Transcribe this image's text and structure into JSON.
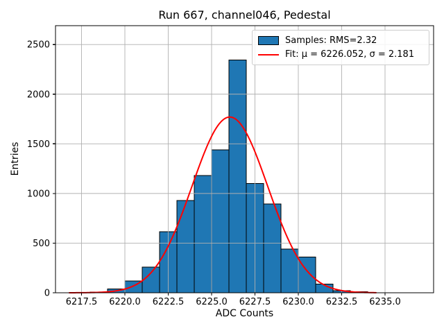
{
  "figure": {
    "background": "#ffffff"
  },
  "chart_data": {
    "type": "bar",
    "subtype": "histogram_with_gaussian_fit",
    "title": "Run 667, channel046, Pedestal",
    "xlabel": "ADC Counts",
    "ylabel": "Entries",
    "xlim": [
      6216.0,
      6237.8
    ],
    "ylim": [
      0,
      2690
    ],
    "grid": true,
    "grid_color": "#b0b0b0",
    "spine_color": "#000000",
    "xticks": {
      "values": [
        6217.5,
        6220.0,
        6222.5,
        6225.0,
        6227.5,
        6230.0,
        6232.5,
        6235.0
      ],
      "labels": [
        "6217.5",
        "6220.0",
        "6222.5",
        "6225.0",
        "6227.5",
        "6230.0",
        "6232.5",
        "6235.0"
      ]
    },
    "yticks": {
      "values": [
        0,
        500,
        1000,
        1500,
        2000,
        2500
      ],
      "labels": [
        "0",
        "500",
        "1000",
        "1500",
        "2000",
        "2500"
      ]
    },
    "histogram": {
      "series_name": "Samples",
      "fill_color": "#1f77b4",
      "edge_color": "#000000",
      "bin_edges": [
        6218,
        6219,
        6220,
        6221,
        6222,
        6223,
        6224,
        6225,
        6226,
        6227,
        6228,
        6229,
        6230,
        6231,
        6232,
        6233,
        6234
      ],
      "counts": [
        8,
        38,
        120,
        260,
        615,
        930,
        1180,
        1440,
        2345,
        1100,
        895,
        440,
        360,
        88,
        22,
        12
      ]
    },
    "fit_curve": {
      "series_name": "Fit",
      "color": "#ff0000",
      "line_width": 2,
      "mu": 6226.052,
      "sigma": 2.181,
      "peak_entries": 1770,
      "x_range": [
        6216.8,
        6234.5
      ]
    },
    "stats": {
      "rms": 2.32,
      "mu": 6226.052,
      "sigma": 2.181
    },
    "legend": {
      "position": "upper right",
      "items": [
        {
          "type": "patch",
          "color": "#1f77b4",
          "edge": "#000000",
          "label": "Samples: RMS=2.32"
        },
        {
          "type": "line",
          "color": "#ff0000",
          "label": "Fit: μ = 6226.052, σ = 2.181"
        }
      ]
    }
  }
}
